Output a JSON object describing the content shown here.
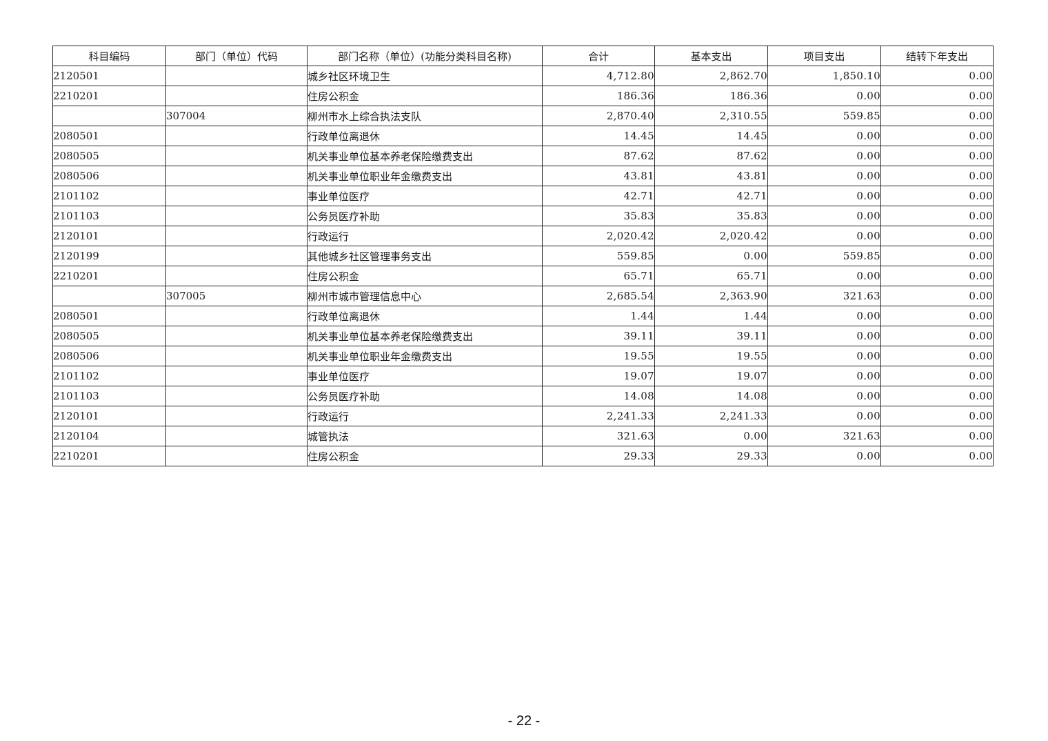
{
  "table": {
    "headers": [
      "科目编码",
      "部门（单位）代码",
      "部门名称（单位）(功能分类科目名称)",
      "合计",
      "基本支出",
      "项目支出",
      "结转下年支出"
    ],
    "rows": [
      [
        "2120501",
        "",
        "城乡社区环境卫生",
        "4,712.80",
        "2,862.70",
        "1,850.10",
        "0.00"
      ],
      [
        "2210201",
        "",
        "住房公积金",
        "186.36",
        "186.36",
        "0.00",
        "0.00"
      ],
      [
        "",
        "307004",
        "柳州市水上综合执法支队",
        "2,870.40",
        "2,310.55",
        "559.85",
        "0.00"
      ],
      [
        "2080501",
        "",
        "行政单位离退休",
        "14.45",
        "14.45",
        "0.00",
        "0.00"
      ],
      [
        "2080505",
        "",
        "机关事业单位基本养老保险缴费支出",
        "87.62",
        "87.62",
        "0.00",
        "0.00"
      ],
      [
        "2080506",
        "",
        "机关事业单位职业年金缴费支出",
        "43.81",
        "43.81",
        "0.00",
        "0.00"
      ],
      [
        "2101102",
        "",
        "事业单位医疗",
        "42.71",
        "42.71",
        "0.00",
        "0.00"
      ],
      [
        "2101103",
        "",
        "公务员医疗补助",
        "35.83",
        "35.83",
        "0.00",
        "0.00"
      ],
      [
        "2120101",
        "",
        "行政运行",
        "2,020.42",
        "2,020.42",
        "0.00",
        "0.00"
      ],
      [
        "2120199",
        "",
        "其他城乡社区管理事务支出",
        "559.85",
        "0.00",
        "559.85",
        "0.00"
      ],
      [
        "2210201",
        "",
        "住房公积金",
        "65.71",
        "65.71",
        "0.00",
        "0.00"
      ],
      [
        "",
        "307005",
        "柳州市城市管理信息中心",
        "2,685.54",
        "2,363.90",
        "321.63",
        "0.00"
      ],
      [
        "2080501",
        "",
        "行政单位离退休",
        "1.44",
        "1.44",
        "0.00",
        "0.00"
      ],
      [
        "2080505",
        "",
        "机关事业单位基本养老保险缴费支出",
        "39.11",
        "39.11",
        "0.00",
        "0.00"
      ],
      [
        "2080506",
        "",
        "机关事业单位职业年金缴费支出",
        "19.55",
        "19.55",
        "0.00",
        "0.00"
      ],
      [
        "2101102",
        "",
        "事业单位医疗",
        "19.07",
        "19.07",
        "0.00",
        "0.00"
      ],
      [
        "2101103",
        "",
        "公务员医疗补助",
        "14.08",
        "14.08",
        "0.00",
        "0.00"
      ],
      [
        "2120101",
        "",
        "行政运行",
        "2,241.33",
        "2,241.33",
        "0.00",
        "0.00"
      ],
      [
        "2120104",
        "",
        "城管执法",
        "321.63",
        "0.00",
        "321.63",
        "0.00"
      ],
      [
        "2210201",
        "",
        "住房公积金",
        "29.33",
        "29.33",
        "0.00",
        "0.00"
      ]
    ]
  },
  "footer": {
    "page_number": "- 22 -"
  }
}
